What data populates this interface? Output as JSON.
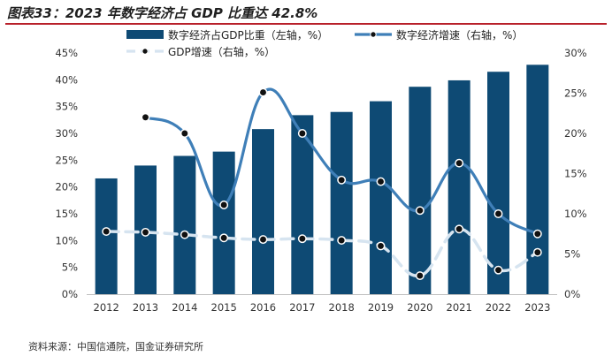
{
  "header": {
    "title": "图表33：2023 年数字经济占 GDP 比重达 42.8%"
  },
  "footer": {
    "source": "资料来源：中国信通院，国金证券研究所"
  },
  "colors": {
    "bar": "#0e4a74",
    "digital_growth_line": "#3f7fb8",
    "gdp_growth_line": "#d6e4f0",
    "marker": "#111111",
    "title_rule": "#b8202a"
  },
  "chart_data": {
    "type": "bar+line",
    "categories": [
      "2012",
      "2013",
      "2014",
      "2015",
      "2016",
      "2017",
      "2018",
      "2019",
      "2020",
      "2021",
      "2022",
      "2023"
    ],
    "series": [
      {
        "name": "数字经济占GDP比重（左轴，%）",
        "type": "bar",
        "axis": "left",
        "values": [
          21.6,
          24.0,
          25.8,
          26.6,
          30.8,
          33.4,
          34.0,
          36.0,
          38.7,
          39.9,
          41.5,
          42.8
        ]
      },
      {
        "name": "数字经济增速（右轴，%）",
        "type": "line-smooth",
        "axis": "right",
        "values": [
          null,
          22.0,
          20.0,
          11.1,
          25.1,
          20.0,
          14.2,
          14.0,
          10.4,
          16.3,
          10.0,
          7.5
        ]
      },
      {
        "name": "GDP增速（右轴，%）",
        "type": "line-dashed",
        "axis": "right",
        "values": [
          7.8,
          7.7,
          7.4,
          7.0,
          6.8,
          6.9,
          6.7,
          6.0,
          2.3,
          8.1,
          3.0,
          5.2
        ]
      }
    ],
    "left_axis": {
      "ylim": [
        0,
        45
      ],
      "ticks": [
        "0%",
        "5%",
        "10%",
        "15%",
        "20%",
        "25%",
        "30%",
        "35%",
        "40%",
        "45%"
      ]
    },
    "right_axis": {
      "ylim": [
        0,
        30
      ],
      "ticks": [
        "0%",
        "5%",
        "10%",
        "15%",
        "20%",
        "25%",
        "30%"
      ]
    },
    "legend": [
      "数字经济占GDP比重（左轴，%）",
      "数字经济增速（右轴，%）",
      "GDP增速（右轴，%）"
    ],
    "legend_position": "top"
  }
}
